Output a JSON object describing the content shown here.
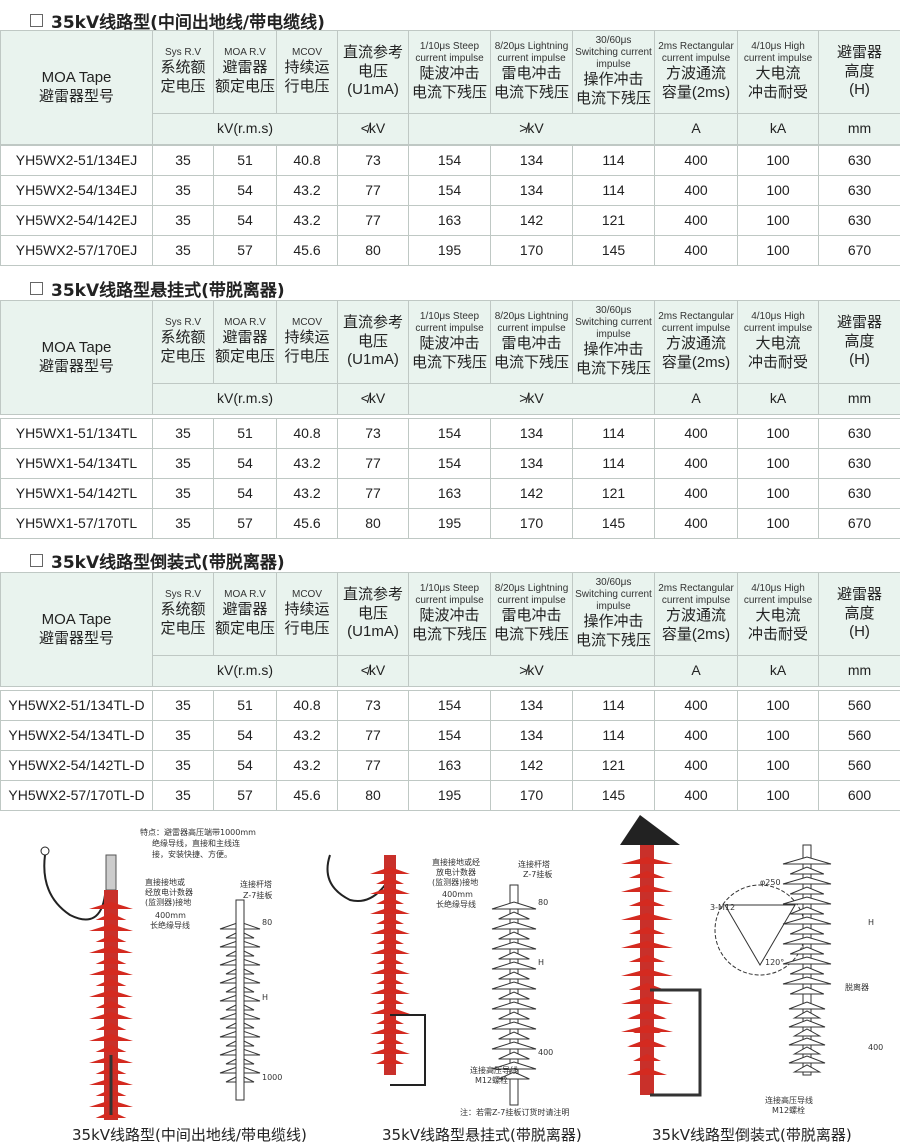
{
  "header": {
    "model": [
      "MOA Tape",
      "避雷器型号"
    ],
    "cols": [
      {
        "en": "Sys R.V",
        "cn": [
          "系统额",
          "定电压"
        ]
      },
      {
        "en": "MOA R.V",
        "cn": [
          "避雷器",
          "额定电压"
        ]
      },
      {
        "en": "MCOV",
        "cn": [
          "持续运",
          "行电压"
        ]
      },
      {
        "en": "",
        "cn": [
          "直流参考",
          "电压",
          "(U1mA)"
        ]
      },
      {
        "en": "1/10μs Steep current impulse",
        "cn": [
          "陡波冲击",
          "电流下残压"
        ]
      },
      {
        "en": "8/20μs Lightning current impulse",
        "cn": [
          "雷电冲击",
          "电流下残压"
        ]
      },
      {
        "en": "30/60μs Switching current impulse",
        "cn": [
          "操作冲击",
          "电流下残压"
        ]
      },
      {
        "en": "2ms Rectangular current impulse",
        "cn": [
          "方波通流",
          "容量(2ms)"
        ]
      },
      {
        "en": "4/10μs High current impulse",
        "cn": [
          "大电流",
          "冲击耐受"
        ]
      },
      {
        "en": "",
        "cn": [
          "避雷器",
          "高度",
          "(H)"
        ]
      }
    ],
    "units": [
      "kV(r.m.s)",
      "≮kV",
      "≯kV",
      "A",
      "kA",
      "mm"
    ]
  },
  "tables": [
    {
      "title": "35kV线路型(中间出地线/带电缆线)",
      "rows": [
        [
          "YH5WX2-51/134EJ",
          "35",
          "51",
          "40.8",
          "73",
          "154",
          "134",
          "114",
          "400",
          "100",
          "630"
        ],
        [
          "YH5WX2-54/134EJ",
          "35",
          "54",
          "43.2",
          "77",
          "154",
          "134",
          "114",
          "400",
          "100",
          "630"
        ],
        [
          "YH5WX2-54/142EJ",
          "35",
          "54",
          "43.2",
          "77",
          "163",
          "142",
          "121",
          "400",
          "100",
          "630"
        ],
        [
          "YH5WX2-57/170EJ",
          "35",
          "57",
          "45.6",
          "80",
          "195",
          "170",
          "145",
          "400",
          "100",
          "670"
        ]
      ]
    },
    {
      "title": "35kV线路型悬挂式(带脱离器)",
      "rows": [
        [
          "YH5WX1-51/134TL",
          "35",
          "51",
          "40.8",
          "73",
          "154",
          "134",
          "114",
          "400",
          "100",
          "630"
        ],
        [
          "YH5WX1-54/134TL",
          "35",
          "54",
          "43.2",
          "77",
          "154",
          "134",
          "114",
          "400",
          "100",
          "630"
        ],
        [
          "YH5WX1-54/142TL",
          "35",
          "54",
          "43.2",
          "77",
          "163",
          "142",
          "121",
          "400",
          "100",
          "630"
        ],
        [
          "YH5WX1-57/170TL",
          "35",
          "57",
          "45.6",
          "80",
          "195",
          "170",
          "145",
          "400",
          "100",
          "670"
        ]
      ]
    },
    {
      "title": "35kV线路型倒装式(带脱离器)",
      "rows": [
        [
          "YH5WX2-51/134TL-D",
          "35",
          "51",
          "40.8",
          "73",
          "154",
          "134",
          "114",
          "400",
          "100",
          "560"
        ],
        [
          "YH5WX2-54/134TL-D",
          "35",
          "54",
          "43.2",
          "77",
          "154",
          "134",
          "114",
          "400",
          "100",
          "560"
        ],
        [
          "YH5WX2-54/142TL-D",
          "35",
          "54",
          "43.2",
          "77",
          "163",
          "142",
          "121",
          "400",
          "100",
          "560"
        ],
        [
          "YH5WX2-57/170TL-D",
          "35",
          "57",
          "45.6",
          "80",
          "195",
          "170",
          "145",
          "400",
          "100",
          "600"
        ]
      ]
    }
  ],
  "diagrams": [
    {
      "caption": "35kV线路型(中间出地线/带电缆线)",
      "note": [
        "特点：避雷器高压端带1000mm",
        "绝缘导线，直接和主线连",
        "接，安装快捷、方便。"
      ],
      "ground": [
        "直接接地或",
        "经放电计数器",
        "(监测器)接地",
        "400mm",
        "长绝缘导线"
      ],
      "tower": [
        "连接杆塔",
        "Z-7挂板"
      ],
      "dims": [
        "80",
        "H",
        "1000"
      ]
    },
    {
      "caption": "35kV线路型悬挂式(带脱离器)",
      "ground": [
        "直接接地或经",
        "放电计数器",
        "(监测器)接地",
        "400mm",
        "长绝缘导线"
      ],
      "tower": [
        "连接杆塔",
        "Z-7挂板"
      ],
      "hv": [
        "连接高压导线",
        "M12螺栓"
      ],
      "dims": [
        "80",
        "H",
        "400"
      ],
      "footnote": "注：若需Z-7挂板订货时请注明"
    },
    {
      "caption": "35kV线路型倒装式(带脱离器)",
      "plate": [
        "3-M12",
        "φ250",
        "120°"
      ],
      "detacher": "脱离器",
      "hv": [
        "连接高压导线",
        "M12螺栓"
      ],
      "dims": [
        "H",
        "400"
      ]
    }
  ],
  "colors": {
    "header_bg": "#e9f3ee",
    "insulator_red": "#d42a20"
  }
}
